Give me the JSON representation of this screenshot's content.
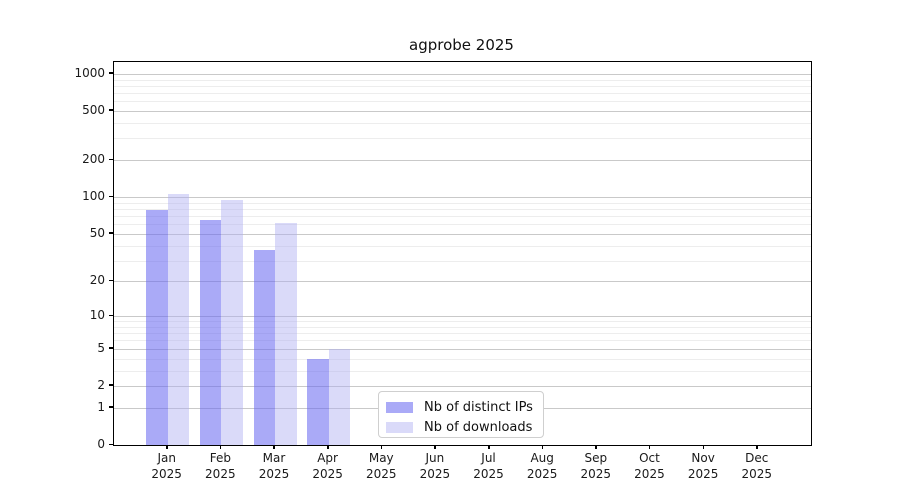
{
  "chart_data": {
    "type": "bar",
    "title": "agprobe 2025",
    "categories": [
      {
        "month": "Jan",
        "year": "2025"
      },
      {
        "month": "Feb",
        "year": "2025"
      },
      {
        "month": "Mar",
        "year": "2025"
      },
      {
        "month": "Apr",
        "year": "2025"
      },
      {
        "month": "May",
        "year": "2025"
      },
      {
        "month": "Jun",
        "year": "2025"
      },
      {
        "month": "Jul",
        "year": "2025"
      },
      {
        "month": "Aug",
        "year": "2025"
      },
      {
        "month": "Sep",
        "year": "2025"
      },
      {
        "month": "Oct",
        "year": "2025"
      },
      {
        "month": "Nov",
        "year": "2025"
      },
      {
        "month": "Dec",
        "year": "2025"
      }
    ],
    "series": [
      {
        "name": "Nb of distinct IPs",
        "color": "#a9a9f6",
        "fill_rgba": "rgba(100,100,240,0.55)",
        "values": [
          78,
          65,
          37,
          4,
          0,
          0,
          0,
          0,
          0,
          0,
          0,
          0
        ]
      },
      {
        "name": "Nb of downloads",
        "color": "#d9d9f9",
        "fill_rgba": "rgba(170,170,242,0.44)",
        "values": [
          105,
          95,
          61,
          5,
          0,
          0,
          0,
          0,
          0,
          0,
          0,
          0
        ]
      }
    ],
    "yticks": [
      0,
      1,
      2,
      5,
      10,
      20,
      50,
      100,
      200,
      500,
      1000
    ],
    "yscale": "log10(1+x)",
    "ylim": [
      0,
      1244
    ],
    "grid": {
      "major_color": "#c9c9c9",
      "minor_color": "#ededed",
      "minor_values": [
        2,
        3,
        4,
        5,
        6,
        7,
        8,
        9,
        20,
        30,
        40,
        50,
        60,
        70,
        80,
        90,
        200,
        300,
        400,
        500,
        600,
        700,
        800,
        900
      ]
    },
    "legend_position": "inside-bottom-center"
  }
}
